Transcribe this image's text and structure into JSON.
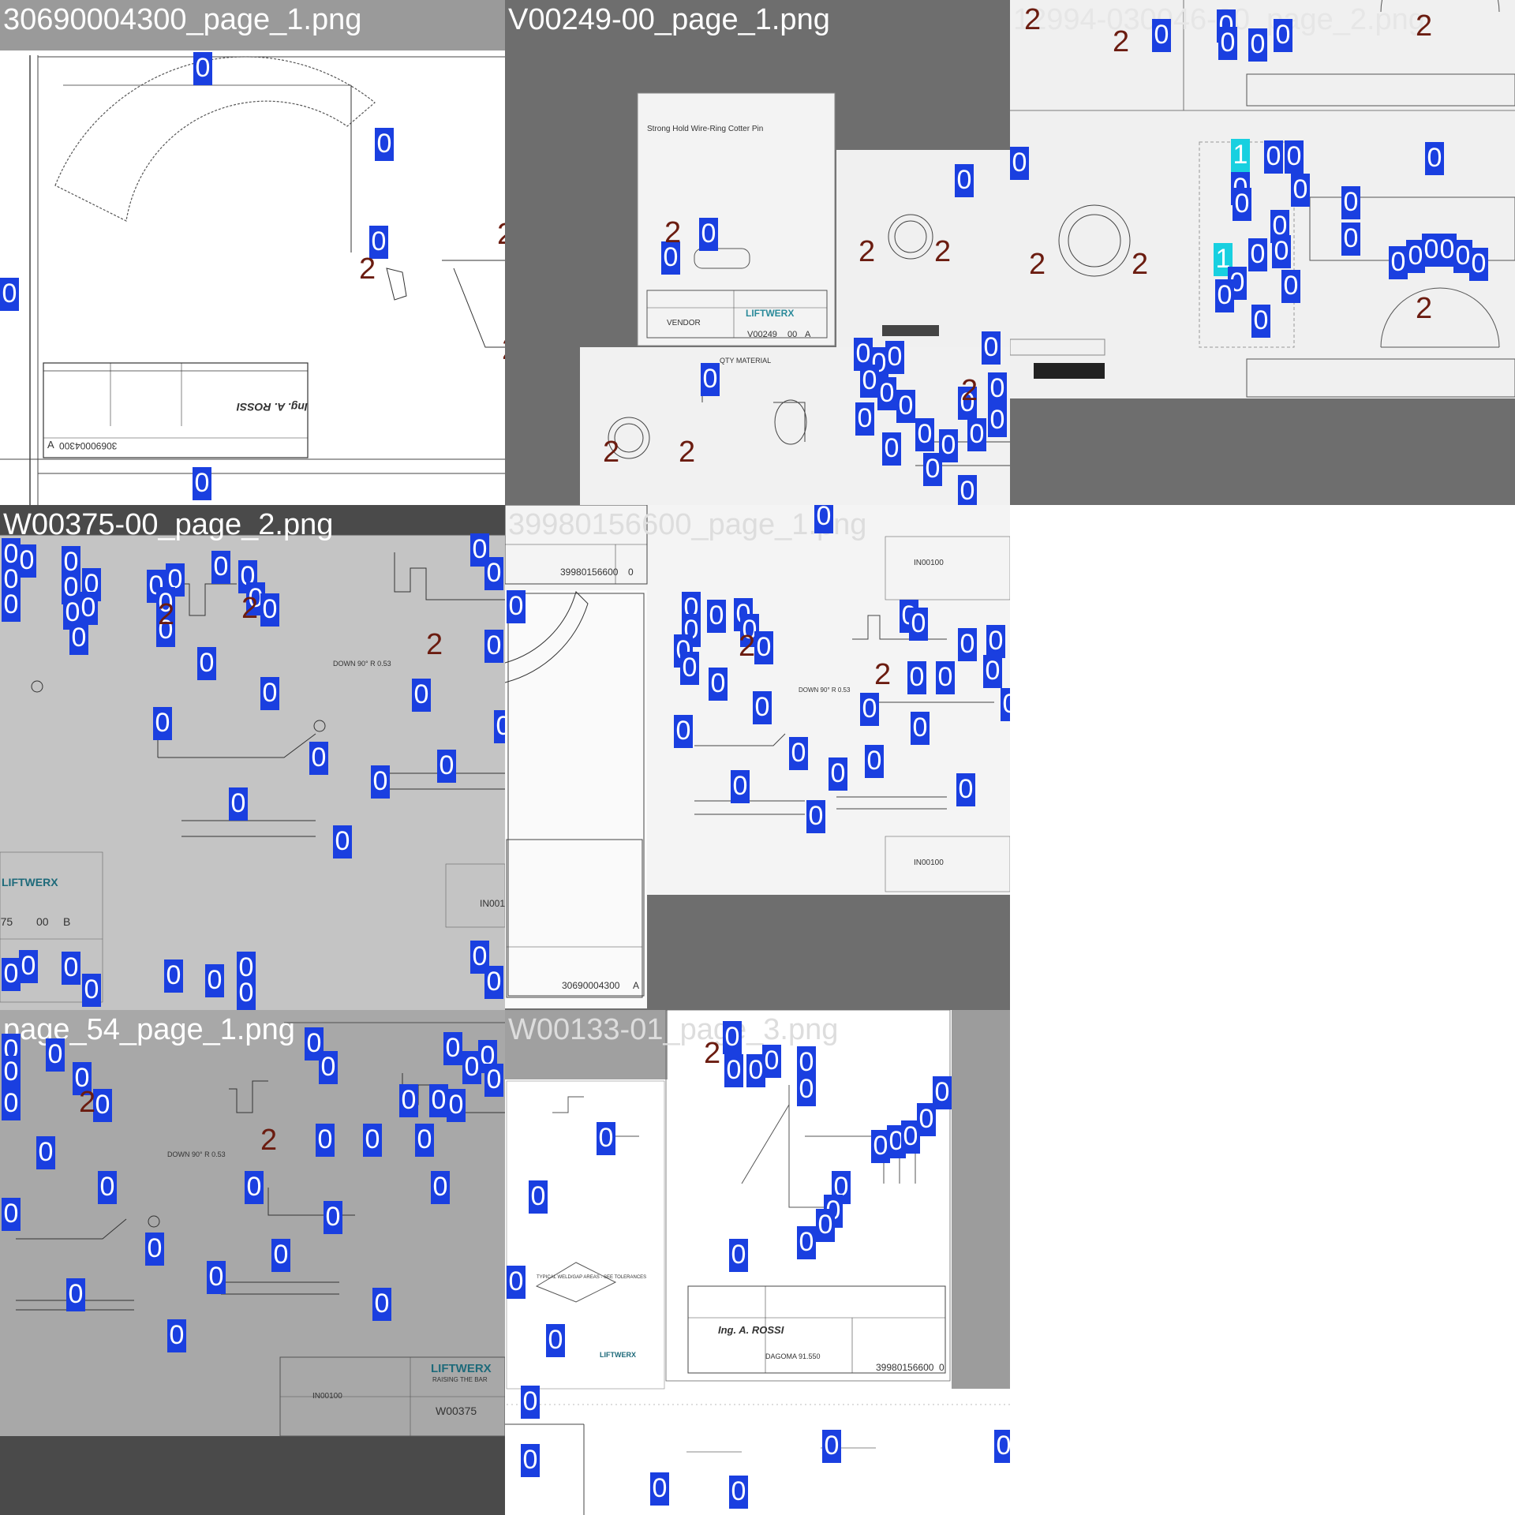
{
  "tiles": [
    {
      "label": "30690004300_page_1.png",
      "label_color": "#ffffff",
      "title_bg": "#9a9a9a"
    },
    {
      "label": "V00249-00_page_1.png",
      "label_color": "#ffffff",
      "title_bg": "#6e6e6e"
    },
    {
      "label": "12994-030046-00_page_2.png",
      "label_color": "#e6e6e6",
      "title_bg": "#f0f0f0"
    },
    {
      "label": "W00375-00_page_2.png",
      "label_color": "#ffffff",
      "title_bg": "#4a4a4a"
    },
    {
      "label": "39980156600_page_1.png",
      "label_color": "#dddddd",
      "title_bg": "#f5f5f5"
    },
    {
      "label": "page_54_page_1.png",
      "label_color": "#ffffff",
      "title_bg": "#a8a8a8"
    },
    {
      "label": "W00133-01_page_3.png",
      "label_color": "#dddddd",
      "title_bg": "#ffffff"
    }
  ],
  "drawing_text": {
    "rossi_logo": "Ing. A. ROSSI",
    "doc_30690004300": "30690004300",
    "doc_30690004300_rev": "A",
    "doc_39980156600": "39980156600",
    "doc_39980156600_rev": "0",
    "v00249_doc": "V00249",
    "v00249_rev": "00",
    "v00249_rev2": "A",
    "vendor": "VENDOR",
    "liftwerx": "LIFTWERX",
    "liftwerx_tag": "RAISING THE BAR",
    "w00375_doc": "W00375",
    "w00375_rev": "00",
    "w00375_rev2": "B",
    "in00100": "IN00100",
    "down_note": "DOWN 90° R 0.53",
    "cotter_title": "Strong Hold Wire-Ring Cotter Pin",
    "qty_header": "QTY  MATERIAL",
    "dagoma": "DAGOMA 91.550",
    "weld_note": "TYPICAL WELD/GAP AREAS - SEE TOLERANCES",
    "section_A": "A",
    "section_B": "B"
  },
  "class_markers": {
    "zero": "0",
    "one": "1",
    "two": "2"
  },
  "colors": {
    "class0_bg": "#1a3fe0",
    "class1_bg": "#18d0e0",
    "class2_text": "#6b1c10"
  }
}
